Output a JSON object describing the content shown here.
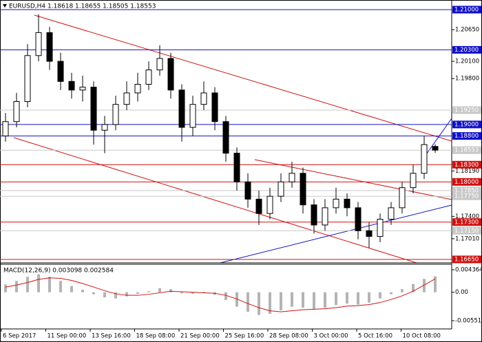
{
  "chart_data": {
    "type": "candlestick",
    "title": "EURUSD,H4  1.18618 1.18655 1.18505 1.18553",
    "ylim": [
      1.1665,
      1.21
    ],
    "yticks": [
      {
        "value": 1.2065,
        "label": "1.20650"
      },
      {
        "value": 1.201,
        "label": "1.20100"
      },
      {
        "value": 1.198,
        "label": "1.19800"
      },
      {
        "value": 1.1819,
        "label": "1.18190"
      },
      {
        "value": 1.174,
        "label": "1.17400"
      },
      {
        "value": 1.1701,
        "label": "1.17010"
      }
    ],
    "levels": [
      {
        "value": 1.21,
        "label": "1.21000",
        "color": "#1010c8"
      },
      {
        "value": 1.203,
        "label": "1.20300",
        "color": "#1010c8"
      },
      {
        "value": 1.1925,
        "label": "1.19250",
        "color": "#c8c8c8"
      },
      {
        "value": 1.19,
        "label": "1.19000",
        "color": "#1010c8"
      },
      {
        "value": 1.188,
        "label": "1.18800",
        "color": "#1010c8"
      },
      {
        "value": 1.18553,
        "label": "1.18553",
        "color": "#c8c8c8"
      },
      {
        "value": 1.183,
        "label": "1.18300",
        "color": "#d01010"
      },
      {
        "value": 1.18,
        "label": "1.18000",
        "color": "#d01010"
      },
      {
        "value": 1.1785,
        "label": "1.17850",
        "color": "#c8c8c8"
      },
      {
        "value": 1.1775,
        "label": "1.17750",
        "color": "#c8c8c8"
      },
      {
        "value": 1.173,
        "label": "1.17300",
        "color": "#d01010"
      },
      {
        "value": 1.1715,
        "label": "1.17150",
        "color": "#c8c8c8"
      },
      {
        "value": 1.1665,
        "label": "1.16650",
        "color": "#d01010"
      }
    ],
    "open": [
      1.188,
      1.1905,
      1.194,
      1.202,
      1.206,
      1.201,
      1.1975,
      1.196,
      1.1965,
      1.189,
      1.19,
      1.1935,
      1.1955,
      1.197,
      1.1995,
      1.2015,
      1.196,
      1.1895,
      1.1935,
      1.1955,
      1.1905,
      1.185,
      1.18,
      1.177,
      1.1745,
      1.1775,
      1.18,
      1.1815,
      1.176,
      1.1725,
      1.1755,
      1.177,
      1.1755,
      1.1715,
      1.1705,
      1.1735,
      1.1755,
      1.179,
      1.1815,
      1.18618
    ],
    "high": [
      1.192,
      1.1955,
      1.204,
      1.2092,
      1.207,
      1.2025,
      1.199,
      1.1985,
      1.1975,
      1.1915,
      1.195,
      1.1975,
      1.199,
      1.201,
      1.2038,
      1.2025,
      1.197,
      1.195,
      1.1975,
      1.1965,
      1.1915,
      1.186,
      1.1815,
      1.1785,
      1.179,
      1.1815,
      1.1835,
      1.1825,
      1.177,
      1.177,
      1.179,
      1.178,
      1.1765,
      1.173,
      1.1745,
      1.1765,
      1.18,
      1.183,
      1.188,
      1.18655
    ],
    "low": [
      1.187,
      1.1895,
      1.193,
      1.201,
      1.1995,
      1.196,
      1.1945,
      1.194,
      1.1865,
      1.185,
      1.189,
      1.1925,
      1.194,
      1.196,
      1.1985,
      1.1945,
      1.187,
      1.188,
      1.1925,
      1.189,
      1.1835,
      1.1785,
      1.1755,
      1.1725,
      1.1735,
      1.1765,
      1.179,
      1.1745,
      1.171,
      1.1715,
      1.1745,
      1.174,
      1.17,
      1.1685,
      1.1695,
      1.1725,
      1.1745,
      1.178,
      1.1805,
      1.18505
    ],
    "close": [
      1.1905,
      1.194,
      1.202,
      1.206,
      1.201,
      1.1975,
      1.196,
      1.1965,
      1.189,
      1.19,
      1.1935,
      1.1955,
      1.197,
      1.1995,
      1.2015,
      1.196,
      1.1895,
      1.1935,
      1.1955,
      1.1905,
      1.185,
      1.18,
      1.177,
      1.1745,
      1.1775,
      1.18,
      1.1815,
      1.176,
      1.1725,
      1.1755,
      1.177,
      1.1755,
      1.1715,
      1.1705,
      1.1735,
      1.1755,
      1.179,
      1.1815,
      1.1865,
      1.18553
    ],
    "x_labels": [
      "6 Sep 2017",
      "11 Sep 00:00",
      "13 Sep 16:00",
      "18 Sep 08:00",
      "21 Sep 00:00",
      "25 Sep 16:00",
      "28 Sep 08:00",
      "3 Oct 00:00",
      "5 Oct 16:00",
      "10 Oct 08:00"
    ],
    "macd": {
      "title": "MACD(12,26,9) 0.003098 0.002584",
      "ylim": [
        -0.005514,
        0.004364
      ],
      "yticks": [
        {
          "value": 0.004364,
          "label": "0.004364"
        },
        {
          "value": 0,
          "label": "0.00"
        },
        {
          "value": -0.005514,
          "label": "-0.005514"
        }
      ],
      "histogram_color": "#b4b4b4",
      "signal_color": "#d01010",
      "histogram": [
        0.0015,
        0.0022,
        0.003,
        0.0035,
        0.003,
        0.0022,
        0.0012,
        0.0005,
        -0.0004,
        -0.001,
        -0.0012,
        -0.0008,
        -0.0003,
        0.0002,
        0.0008,
        0.0006,
        -0.0002,
        -0.0003,
        0.0001,
        -0.0005,
        -0.0015,
        -0.0028,
        -0.0038,
        -0.0044,
        -0.0042,
        -0.0035,
        -0.0028,
        -0.003,
        -0.0033,
        -0.003,
        -0.0025,
        -0.0022,
        -0.0024,
        -0.002,
        -0.0012,
        -0.0004,
        0.0006,
        0.0016,
        0.0026,
        0.003098
      ],
      "signal": [
        0.001,
        0.0014,
        0.0019,
        0.0025,
        0.0028,
        0.0027,
        0.0023,
        0.0017,
        0.001,
        0.0003,
        -0.0003,
        -0.0006,
        -0.0006,
        -0.0004,
        -0.0001,
        0.0002,
        0.0001,
        0,
        -0.0001,
        -0.0002,
        -0.0006,
        -0.0013,
        -0.0022,
        -0.003,
        -0.0036,
        -0.0038,
        -0.0036,
        -0.0034,
        -0.0033,
        -0.0032,
        -0.003,
        -0.0027,
        -0.0026,
        -0.0024,
        -0.002,
        -0.0014,
        -0.0007,
        0.0002,
        0.0014,
        0.002584
      ]
    }
  }
}
